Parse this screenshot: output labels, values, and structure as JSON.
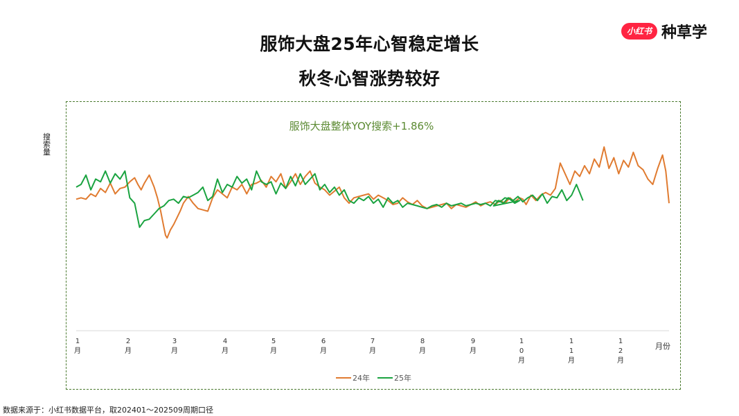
{
  "header": {
    "title_line1": "服饰大盘25年心智稳定增长",
    "title_line2": "秋冬心智涨势较好"
  },
  "logo": {
    "badge": "小红书",
    "text": "种草学",
    "badge_color": "#ff2442"
  },
  "footer": {
    "source": "数据来源于：小红书数据平台，取202401～202509周期口径"
  },
  "chart_data": {
    "type": "line",
    "title": "服饰大盘整体YOY搜索+1.86%",
    "ylabel": "搜索量",
    "xlabel": "月份",
    "x_ticks": [
      "1\n月",
      "2\n月",
      "3\n月",
      "4\n月",
      "5\n月",
      "6\n月",
      "7\n月",
      "8\n月",
      "9\n月",
      "1\n0\n月",
      "1\n1\n月",
      "1\n2\n月"
    ],
    "x_range": [
      0,
      365
    ],
    "ylim": [
      0,
      100
    ],
    "legend_position": "bottom",
    "colors": {
      "24年": "#e07b30",
      "25年": "#1aa340",
      "title": "#5b8a32"
    },
    "series": [
      {
        "name": "24年",
        "x": [
          0,
          3,
          6,
          9,
          12,
          15,
          18,
          21,
          24,
          27,
          30,
          33,
          36,
          38,
          40,
          42,
          45,
          48,
          50,
          52,
          54,
          55,
          56,
          58,
          60,
          62,
          64,
          66,
          69,
          72,
          75,
          78,
          81,
          84,
          87,
          90,
          93,
          96,
          99,
          102,
          105,
          108,
          111,
          114,
          117,
          120,
          123,
          126,
          129,
          132,
          135,
          138,
          141,
          144,
          147,
          150,
          153,
          156,
          159,
          162,
          165,
          168,
          171,
          174,
          177,
          180,
          183,
          186,
          189,
          192,
          195,
          198,
          201,
          204,
          207,
          210,
          213,
          216,
          219,
          222,
          225,
          228,
          231,
          234,
          237,
          240,
          243,
          246,
          249,
          252,
          255,
          258,
          261,
          264,
          267,
          270,
          273,
          275,
          277,
          280,
          283,
          286,
          289,
          292,
          295,
          298,
          301,
          304,
          307,
          310,
          313,
          316,
          319,
          322,
          325,
          328,
          331,
          334,
          337,
          340,
          343,
          346,
          349,
          352,
          355,
          358,
          361,
          363,
          365
        ],
        "values": [
          61,
          62,
          61,
          65,
          63,
          69,
          66,
          73,
          65,
          69,
          70,
          74,
          77,
          72,
          68,
          73,
          79,
          70,
          62,
          52,
          40,
          34,
          32,
          38,
          42,
          47,
          52,
          58,
          63,
          58,
          54,
          53,
          52,
          62,
          68,
          65,
          62,
          70,
          68,
          72,
          65,
          72,
          73,
          75,
          70,
          78,
          74,
          80,
          69,
          74,
          80,
          72,
          78,
          82,
          73,
          70,
          68,
          64,
          67,
          70,
          62,
          58,
          62,
          63,
          64,
          65,
          61,
          64,
          62,
          60,
          57,
          58,
          62,
          59,
          57,
          60,
          56,
          54,
          55,
          56,
          57,
          58,
          54,
          57,
          56,
          55,
          57,
          59,
          56,
          58,
          59,
          57,
          60,
          58,
          62,
          59,
          62,
          61,
          57,
          64,
          60,
          64,
          66,
          64,
          69,
          88,
          80,
          72,
          82,
          78,
          86,
          80,
          91,
          85,
          100,
          84,
          92,
          80,
          90,
          85,
          96,
          86,
          83,
          76,
          72,
          84,
          94,
          82,
          58
        ]
      },
      {
        "name": "25年",
        "x": [
          0,
          3,
          6,
          9,
          12,
          15,
          18,
          21,
          24,
          27,
          30,
          33,
          36,
          39,
          42,
          45,
          48,
          51,
          54,
          57,
          60,
          63,
          66,
          69,
          72,
          75,
          78,
          81,
          84,
          87,
          90,
          93,
          96,
          99,
          102,
          105,
          108,
          111,
          114,
          117,
          120,
          123,
          126,
          129,
          132,
          135,
          138,
          141,
          144,
          147,
          150,
          153,
          156,
          159,
          162,
          165,
          168,
          171,
          174,
          177,
          180,
          183,
          186,
          189,
          192,
          195,
          198,
          201,
          204,
          207,
          210,
          213,
          216,
          219,
          222,
          225,
          228,
          231,
          234,
          237,
          240,
          243,
          246,
          249,
          252,
          255,
          258,
          261,
          264,
          267,
          270,
          273,
          257,
          260,
          263,
          266,
          269,
          272,
          275,
          278,
          281,
          284,
          287,
          290,
          293,
          296,
          299,
          302,
          305,
          308,
          312
        ],
        "values": [
          70,
          72,
          79,
          68,
          76,
          74,
          82,
          73,
          80,
          76,
          82,
          62,
          58,
          40,
          45,
          46,
          50,
          54,
          56,
          60,
          61,
          58,
          63,
          62,
          64,
          66,
          70,
          60,
          63,
          76,
          66,
          72,
          70,
          78,
          73,
          76,
          68,
          82,
          74,
          72,
          74,
          65,
          73,
          69,
          78,
          71,
          80,
          72,
          76,
          80,
          68,
          72,
          66,
          70,
          64,
          68,
          60,
          58,
          62,
          60,
          63,
          58,
          61,
          55,
          62,
          58,
          60,
          55,
          58,
          57,
          56,
          55,
          54,
          56,
          57,
          55,
          58,
          56,
          57,
          58,
          56,
          57,
          58,
          57,
          58,
          56,
          60,
          59,
          62,
          61,
          58,
          60,
          56,
          60,
          58,
          62,
          60,
          63,
          59,
          62,
          64,
          60,
          65,
          58,
          63,
          62,
          68,
          60,
          64,
          72,
          60
        ]
      }
    ]
  }
}
